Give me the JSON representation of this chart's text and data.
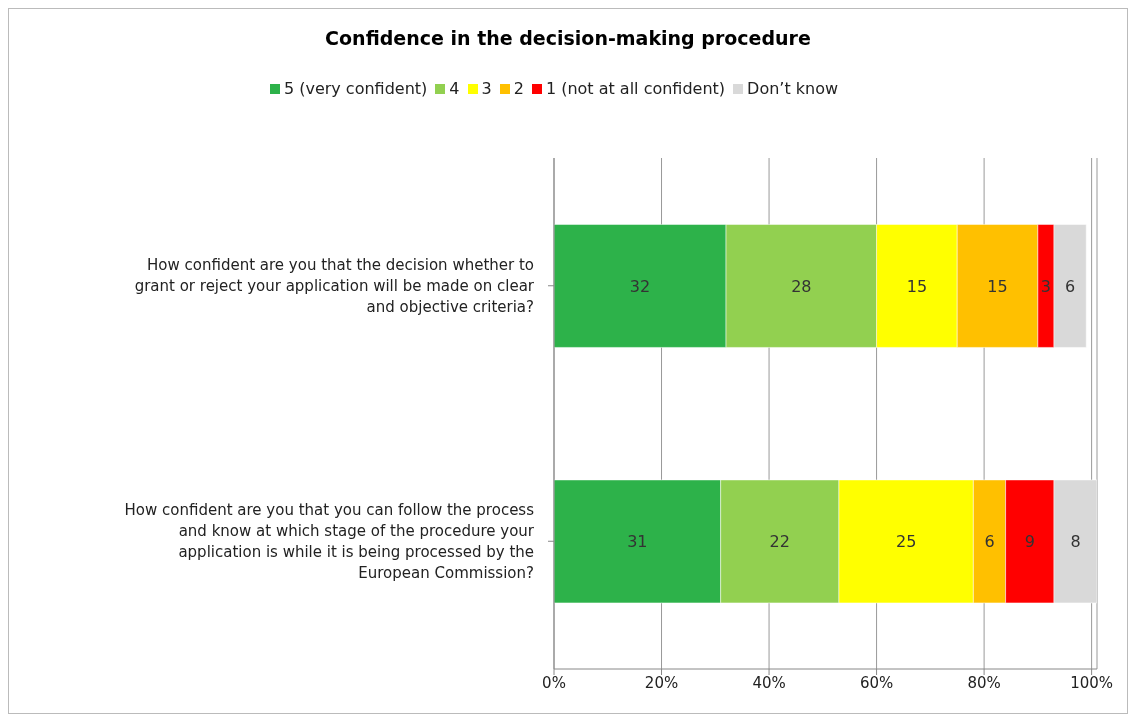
{
  "chart_data": {
    "type": "bar",
    "title": "Confidence in the decision-making procedure",
    "orientation": "horizontal",
    "stacked": true,
    "categories": [
      "How confident are you that the decision whether to grant or reject your application will be made on clear and objective criteria?",
      "How confident are you that you can follow the process and know at which stage of the procedure your application is while it is being processed by the European Commission?"
    ],
    "series": [
      {
        "name": "5 (very confident)",
        "color": "#2db24a",
        "values": [
          32,
          31
        ]
      },
      {
        "name": "4",
        "color": "#92d050",
        "values": [
          28,
          22
        ]
      },
      {
        "name": "3",
        "color": "#ffff00",
        "values": [
          15,
          25
        ]
      },
      {
        "name": "2",
        "color": "#ffc000",
        "values": [
          15,
          6
        ]
      },
      {
        "name": "1 (not at all confident)",
        "color": "#ff0000",
        "values": [
          3,
          9
        ]
      },
      {
        "name": "Don’t know",
        "color": "#d9d9d9",
        "values": [
          6,
          8
        ]
      }
    ],
    "xlim": [
      0,
      101
    ],
    "xticks": [
      {
        "value": 0,
        "label": "0%"
      },
      {
        "value": 20,
        "label": "20%"
      },
      {
        "value": 40,
        "label": "40%"
      },
      {
        "value": 60,
        "label": "60%"
      },
      {
        "value": 80,
        "label": "80%"
      },
      {
        "value": 100,
        "label": "100%"
      }
    ],
    "grid": "x",
    "legend": "top",
    "data_labels": true
  }
}
